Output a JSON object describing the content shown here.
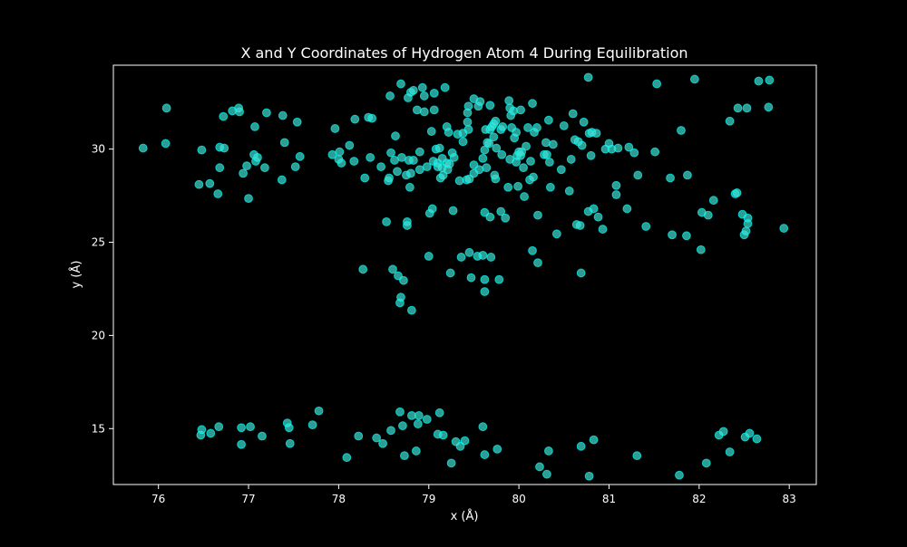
{
  "chart_data": {
    "type": "scatter",
    "title": "X and Y Coordinates of Hydrogen Atom 4 During Equilibration",
    "xlabel": "x (Å)",
    "ylabel": "y (Å)",
    "xlim": [
      75.5,
      83.3
    ],
    "ylim": [
      12.0,
      34.5
    ],
    "xticks": [
      76,
      77,
      78,
      79,
      80,
      81,
      82,
      83
    ],
    "yticks": [
      15,
      20,
      25,
      30
    ],
    "grid": false,
    "background": "#000000",
    "axes_color": "#ffffff",
    "marker_color": "#40e0d0",
    "marker_edge_color": "#00ffff",
    "marker_opacity": 0.7,
    "points": [
      [
        75.83,
        30.05
      ],
      [
        76.08,
        30.3
      ],
      [
        76.09,
        32.2
      ],
      [
        76.45,
        28.1
      ],
      [
        76.47,
        14.65
      ],
      [
        76.48,
        14.95
      ],
      [
        76.48,
        29.95
      ],
      [
        76.57,
        28.15
      ],
      [
        76.58,
        14.75
      ],
      [
        76.66,
        27.6
      ],
      [
        76.67,
        15.1
      ],
      [
        76.68,
        30.1
      ],
      [
        76.68,
        29.0
      ],
      [
        76.72,
        31.75
      ],
      [
        76.73,
        30.05
      ],
      [
        76.82,
        32.05
      ],
      [
        76.89,
        32.2
      ],
      [
        76.9,
        32.0
      ],
      [
        76.92,
        15.05
      ],
      [
        76.92,
        14.15
      ],
      [
        76.94,
        28.7
      ],
      [
        76.98,
        29.1
      ],
      [
        77.0,
        27.35
      ],
      [
        77.02,
        15.1
      ],
      [
        77.06,
        29.7
      ],
      [
        77.07,
        31.2
      ],
      [
        77.08,
        29.35
      ],
      [
        77.1,
        29.55
      ],
      [
        77.15,
        14.6
      ],
      [
        77.18,
        29.0
      ],
      [
        77.2,
        31.95
      ],
      [
        77.37,
        28.35
      ],
      [
        77.38,
        31.8
      ],
      [
        77.4,
        30.35
      ],
      [
        77.43,
        15.3
      ],
      [
        77.45,
        15.05
      ],
      [
        77.46,
        14.2
      ],
      [
        77.52,
        29.05
      ],
      [
        77.54,
        31.45
      ],
      [
        77.57,
        29.6
      ],
      [
        77.71,
        15.2
      ],
      [
        77.78,
        15.95
      ],
      [
        77.93,
        29.7
      ],
      [
        77.96,
        31.1
      ],
      [
        78.0,
        29.45
      ],
      [
        78.01,
        29.85
      ],
      [
        78.03,
        29.25
      ],
      [
        78.09,
        13.45
      ],
      [
        78.12,
        30.2
      ],
      [
        78.17,
        29.35
      ],
      [
        78.18,
        31.6
      ],
      [
        78.22,
        14.6
      ],
      [
        78.27,
        23.55
      ],
      [
        78.29,
        28.45
      ],
      [
        78.33,
        31.7
      ],
      [
        78.35,
        29.55
      ],
      [
        78.37,
        31.65
      ],
      [
        78.42,
        14.5
      ],
      [
        78.47,
        29.05
      ],
      [
        78.49,
        14.2
      ],
      [
        78.53,
        26.1
      ],
      [
        78.55,
        28.3
      ],
      [
        78.56,
        28.45
      ],
      [
        78.58,
        14.9
      ],
      [
        78.57,
        32.85
      ],
      [
        78.58,
        29.8
      ],
      [
        78.6,
        23.55
      ],
      [
        78.62,
        29.4
      ],
      [
        78.63,
        30.7
      ],
      [
        78.65,
        28.8
      ],
      [
        78.66,
        23.2
      ],
      [
        78.68,
        15.9
      ],
      [
        78.68,
        21.75
      ],
      [
        78.69,
        22.05
      ],
      [
        78.69,
        33.5
      ],
      [
        78.7,
        29.55
      ],
      [
        78.71,
        15.15
      ],
      [
        78.72,
        22.95
      ],
      [
        78.73,
        13.55
      ],
      [
        78.75,
        28.6
      ],
      [
        78.76,
        26.1
      ],
      [
        78.76,
        25.9
      ],
      [
        78.77,
        32.75
      ],
      [
        78.78,
        29.4
      ],
      [
        78.79,
        27.95
      ],
      [
        78.8,
        33.05
      ],
      [
        78.8,
        28.7
      ],
      [
        78.81,
        21.35
      ],
      [
        78.81,
        15.7
      ],
      [
        78.83,
        33.15
      ],
      [
        78.83,
        29.4
      ],
      [
        78.86,
        13.8
      ],
      [
        78.87,
        32.1
      ],
      [
        78.88,
        15.25
      ],
      [
        78.89,
        15.7
      ],
      [
        78.9,
        29.85
      ],
      [
        78.9,
        28.9
      ],
      [
        78.93,
        33.3
      ],
      [
        78.95,
        32.0
      ],
      [
        78.95,
        32.85
      ],
      [
        78.98,
        15.5
      ],
      [
        78.98,
        29.05
      ],
      [
        79.0,
        24.25
      ],
      [
        79.01,
        26.55
      ],
      [
        79.03,
        30.95
      ],
      [
        79.05,
        29.35
      ],
      [
        79.04,
        26.8
      ],
      [
        79.06,
        32.1
      ],
      [
        79.06,
        33.0
      ],
      [
        79.08,
        30.0
      ],
      [
        79.1,
        29.25
      ],
      [
        79.1,
        29.05
      ],
      [
        79.1,
        14.7
      ],
      [
        79.12,
        15.85
      ],
      [
        79.12,
        30.05
      ],
      [
        79.13,
        28.45
      ],
      [
        79.15,
        29.0
      ],
      [
        79.15,
        29.5
      ],
      [
        79.16,
        14.65
      ],
      [
        79.16,
        28.6
      ],
      [
        79.18,
        33.3
      ],
      [
        79.2,
        31.2
      ],
      [
        79.2,
        29.25
      ],
      [
        79.21,
        28.9
      ],
      [
        79.22,
        30.9
      ],
      [
        79.23,
        29.2
      ],
      [
        79.24,
        23.35
      ],
      [
        79.25,
        13.15
      ],
      [
        79.26,
        29.8
      ],
      [
        79.27,
        26.7
      ],
      [
        79.28,
        29.55
      ],
      [
        79.3,
        14.3
      ],
      [
        79.32,
        30.8
      ],
      [
        79.34,
        28.3
      ],
      [
        79.35,
        14.05
      ],
      [
        79.36,
        24.2
      ],
      [
        79.38,
        30.4
      ],
      [
        79.38,
        30.85
      ],
      [
        79.4,
        14.35
      ],
      [
        79.42,
        28.35
      ],
      [
        79.43,
        31.95
      ],
      [
        79.43,
        31.45
      ],
      [
        79.44,
        31.05
      ],
      [
        79.44,
        32.3
      ],
      [
        79.45,
        24.45
      ],
      [
        79.45,
        28.4
      ],
      [
        79.47,
        23.1
      ],
      [
        79.5,
        32.7
      ],
      [
        79.5,
        29.15
      ],
      [
        79.5,
        28.7
      ],
      [
        79.54,
        24.25
      ],
      [
        79.55,
        32.3
      ],
      [
        79.56,
        28.9
      ],
      [
        79.57,
        32.55
      ],
      [
        79.6,
        24.3
      ],
      [
        79.6,
        29.5
      ],
      [
        79.6,
        15.1
      ],
      [
        79.62,
        29.95
      ],
      [
        79.62,
        23.0
      ],
      [
        79.62,
        26.6
      ],
      [
        79.62,
        13.6
      ],
      [
        79.62,
        22.35
      ],
      [
        79.63,
        31.05
      ],
      [
        79.64,
        29.0
      ],
      [
        79.65,
        30.35
      ],
      [
        79.67,
        30.3
      ],
      [
        79.68,
        32.35
      ],
      [
        79.68,
        31.05
      ],
      [
        79.68,
        26.35
      ],
      [
        79.69,
        24.2
      ],
      [
        79.7,
        31.2
      ],
      [
        79.72,
        30.65
      ],
      [
        79.72,
        31.35
      ],
      [
        79.74,
        28.4
      ],
      [
        79.73,
        28.6
      ],
      [
        79.74,
        31.5
      ],
      [
        79.75,
        30.05
      ],
      [
        79.76,
        13.9
      ],
      [
        79.78,
        23.0
      ],
      [
        79.8,
        31.05
      ],
      [
        79.8,
        26.65
      ],
      [
        79.81,
        29.7
      ],
      [
        79.82,
        31.2
      ],
      [
        79.85,
        26.3
      ],
      [
        79.88,
        27.95
      ],
      [
        79.89,
        32.6
      ],
      [
        79.9,
        29.45
      ],
      [
        79.9,
        32.2
      ],
      [
        79.91,
        31.8
      ],
      [
        79.92,
        31.15
      ],
      [
        79.94,
        32.05
      ],
      [
        79.95,
        30.6
      ],
      [
        79.97,
        29.3
      ],
      [
        79.97,
        30.9
      ],
      [
        79.98,
        29.65
      ],
      [
        79.99,
        28.0
      ],
      [
        80.0,
        29.85
      ],
      [
        80.02,
        32.1
      ],
      [
        80.02,
        29.65
      ],
      [
        80.03,
        29.85
      ],
      [
        80.05,
        29.0
      ],
      [
        80.06,
        27.45
      ],
      [
        80.08,
        30.15
      ],
      [
        80.1,
        31.15
      ],
      [
        80.12,
        28.35
      ],
      [
        80.13,
        29.35
      ],
      [
        80.15,
        24.55
      ],
      [
        80.15,
        32.45
      ],
      [
        80.16,
        28.5
      ],
      [
        80.17,
        30.9
      ],
      [
        80.2,
        31.15
      ],
      [
        80.21,
        26.45
      ],
      [
        80.21,
        23.9
      ],
      [
        80.23,
        12.95
      ],
      [
        80.28,
        29.7
      ],
      [
        80.3,
        30.35
      ],
      [
        80.31,
        12.55
      ],
      [
        80.31,
        29.7
      ],
      [
        80.33,
        13.8
      ],
      [
        80.33,
        31.55
      ],
      [
        80.34,
        29.3
      ],
      [
        80.35,
        27.95
      ],
      [
        80.38,
        30.25
      ],
      [
        80.42,
        25.45
      ],
      [
        80.47,
        28.9
      ],
      [
        80.5,
        31.25
      ],
      [
        80.56,
        27.75
      ],
      [
        80.58,
        29.45
      ],
      [
        80.6,
        31.9
      ],
      [
        80.62,
        30.5
      ],
      [
        80.64,
        25.95
      ],
      [
        80.66,
        30.4
      ],
      [
        80.68,
        25.9
      ],
      [
        80.7,
        30.2
      ],
      [
        80.69,
        23.35
      ],
      [
        80.69,
        14.05
      ],
      [
        80.72,
        31.45
      ],
      [
        80.77,
        26.65
      ],
      [
        80.78,
        30.85
      ],
      [
        80.78,
        12.45
      ],
      [
        80.8,
        29.65
      ],
      [
        80.77,
        33.85
      ],
      [
        80.81,
        30.9
      ],
      [
        80.83,
        26.8
      ],
      [
        80.83,
        14.4
      ],
      [
        80.86,
        30.85
      ],
      [
        80.88,
        26.35
      ],
      [
        80.93,
        25.7
      ],
      [
        80.96,
        30.0
      ],
      [
        81.0,
        30.3
      ],
      [
        81.03,
        30.0
      ],
      [
        81.08,
        28.05
      ],
      [
        81.08,
        27.55
      ],
      [
        81.1,
        30.05
      ],
      [
        81.2,
        26.8
      ],
      [
        81.22,
        30.1
      ],
      [
        81.28,
        29.8
      ],
      [
        81.31,
        13.55
      ],
      [
        81.32,
        28.6
      ],
      [
        81.41,
        25.85
      ],
      [
        81.51,
        29.85
      ],
      [
        81.53,
        33.5
      ],
      [
        81.68,
        28.45
      ],
      [
        81.7,
        25.4
      ],
      [
        81.78,
        12.5
      ],
      [
        81.8,
        31.0
      ],
      [
        81.86,
        25.35
      ],
      [
        81.87,
        28.6
      ],
      [
        81.95,
        33.75
      ],
      [
        82.02,
        24.6
      ],
      [
        82.03,
        26.6
      ],
      [
        82.08,
        13.15
      ],
      [
        82.1,
        26.45
      ],
      [
        82.16,
        27.25
      ],
      [
        82.22,
        14.65
      ],
      [
        82.27,
        14.85
      ],
      [
        82.34,
        31.5
      ],
      [
        82.34,
        13.75
      ],
      [
        82.4,
        27.6
      ],
      [
        82.42,
        27.65
      ],
      [
        82.43,
        32.2
      ],
      [
        82.48,
        26.5
      ],
      [
        82.5,
        25.4
      ],
      [
        82.51,
        14.55
      ],
      [
        82.52,
        25.6
      ],
      [
        82.53,
        32.2
      ],
      [
        82.54,
        26.3
      ],
      [
        82.54,
        26.0
      ],
      [
        82.56,
        14.75
      ],
      [
        82.64,
        14.45
      ],
      [
        82.66,
        33.65
      ],
      [
        82.77,
        32.25
      ],
      [
        82.78,
        33.7
      ],
      [
        82.94,
        25.75
      ]
    ]
  }
}
